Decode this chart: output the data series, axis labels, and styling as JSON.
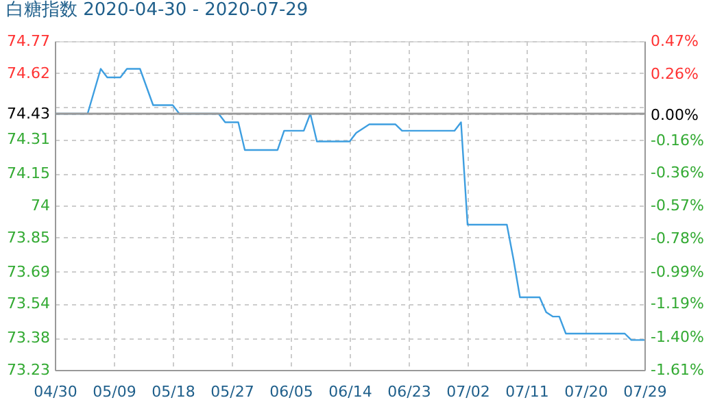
{
  "chart_data": {
    "type": "line",
    "title": "白糖指数 2020-04-30 - 2020-07-29",
    "series": [
      {
        "color": "#3d9ee0",
        "x": [
          "2020-04-30",
          "2020-05-05",
          "2020-05-07",
          "2020-05-08",
          "2020-05-10",
          "2020-05-11",
          "2020-05-13",
          "2020-05-15",
          "2020-05-18",
          "2020-05-19",
          "2020-05-25",
          "2020-05-26",
          "2020-05-28",
          "2020-05-29",
          "2020-06-03",
          "2020-06-04",
          "2020-06-07",
          "2020-06-08",
          "2020-06-09",
          "2020-06-14",
          "2020-06-15",
          "2020-06-17",
          "2020-06-21",
          "2020-06-22",
          "2020-06-30",
          "2020-07-01",
          "2020-07-02",
          "2020-07-08",
          "2020-07-09",
          "2020-07-10",
          "2020-07-13",
          "2020-07-14",
          "2020-07-15",
          "2020-07-16",
          "2020-07-17",
          "2020-07-26",
          "2020-07-27",
          "2020-07-29"
        ],
        "values": [
          74.43,
          74.43,
          74.64,
          74.6,
          74.6,
          74.64,
          74.64,
          74.47,
          74.47,
          74.43,
          74.43,
          74.39,
          74.39,
          74.26,
          74.26,
          74.35,
          74.35,
          74.43,
          74.3,
          74.3,
          74.34,
          74.38,
          74.38,
          74.35,
          74.35,
          74.39,
          73.91,
          73.91,
          73.75,
          73.57,
          73.57,
          73.5,
          73.48,
          73.48,
          73.4,
          73.4,
          73.37,
          73.37
        ]
      }
    ],
    "xlim": [
      "2020-04-30",
      "2020-07-29"
    ],
    "xticks": [
      {
        "value": "2020-04-30",
        "label": "04/30"
      },
      {
        "value": "2020-05-09",
        "label": "05/09"
      },
      {
        "value": "2020-05-18",
        "label": "05/18"
      },
      {
        "value": "2020-05-27",
        "label": "05/27"
      },
      {
        "value": "2020-06-05",
        "label": "06/05"
      },
      {
        "value": "2020-06-14",
        "label": "06/14"
      },
      {
        "value": "2020-06-23",
        "label": "06/23"
      },
      {
        "value": "2020-07-02",
        "label": "07/02"
      },
      {
        "value": "2020-07-11",
        "label": "07/11"
      },
      {
        "value": "2020-07-20",
        "label": "07/20"
      },
      {
        "value": "2020-07-29",
        "label": "07/29"
      }
    ],
    "ylim": [
      73.23,
      74.77
    ],
    "yticks": [
      73.23,
      73.38,
      73.54,
      73.69,
      73.85,
      74,
      74.15,
      74.31,
      {
        "value": 74.46,
        "label": null
      },
      74.43,
      74.62,
      74.77
    ],
    "y2lim": [
      -1.61,
      0.47
    ],
    "y2ticks": [
      {
        "value": -1.61,
        "label": "-1.61%"
      },
      {
        "value": -1.4,
        "label": "-1.40%"
      },
      {
        "value": -1.19,
        "label": "-1.19%"
      },
      {
        "value": -0.99,
        "label": "-0.99%"
      },
      {
        "value": -0.78,
        "label": "-0.78%"
      },
      {
        "value": -0.57,
        "label": "-0.57%"
      },
      {
        "value": -0.36,
        "label": "-0.36%"
      },
      {
        "value": -0.16,
        "label": "-0.16%"
      },
      {
        "value": 0,
        "label": "0.00%"
      },
      {
        "value": 0.26,
        "label": "0.26%"
      },
      {
        "value": 0.47,
        "label": "0.47%"
      }
    ],
    "ref_lines": [
      {
        "axis": "y",
        "value": 74.43,
        "color": "#999999"
      }
    ],
    "grid": true,
    "legend": false,
    "marker": "none",
    "line_style": "solid"
  }
}
